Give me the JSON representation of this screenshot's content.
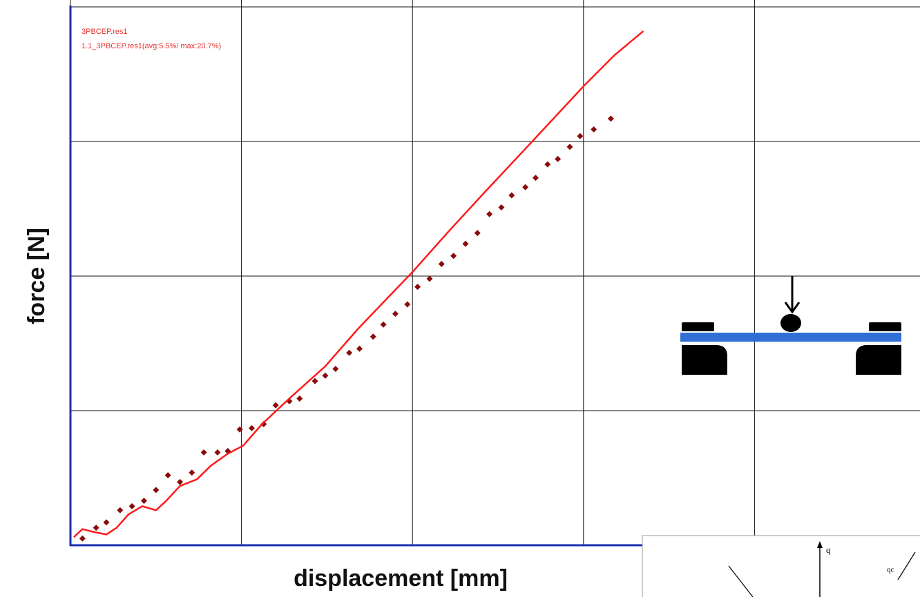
{
  "chart_data": {
    "type": "scatter",
    "x_label": "displacement [mm]",
    "y_label": "force [N]",
    "xlim": [
      0,
      5
    ],
    "ylim": [
      0,
      4
    ],
    "xticks": [
      0,
      1,
      2,
      3,
      4,
      5
    ],
    "yticks": [
      0,
      1,
      2,
      3,
      4
    ],
    "grid": true,
    "legend_position": "upper left",
    "inset_labels": [
      "q",
      "qc"
    ],
    "series": [
      {
        "name": "3PBCEP.res1",
        "color": "#8b0a0a",
        "style": "markers",
        "x": [
          0.07,
          0.15,
          0.21,
          0.29,
          0.36,
          0.43,
          0.5,
          0.57,
          0.64,
          0.71,
          0.78,
          0.86,
          0.92,
          0.99,
          1.06,
          1.13,
          1.2,
          1.28,
          1.34,
          1.43,
          1.49,
          1.55,
          1.63,
          1.69,
          1.77,
          1.83,
          1.9,
          1.97,
          2.03,
          2.1,
          2.17,
          2.24,
          2.31,
          2.38,
          2.45,
          2.52,
          2.58,
          2.66,
          2.72,
          2.79,
          2.85,
          2.92,
          2.98,
          3.06,
          3.16
        ],
        "values": [
          0.05,
          0.13,
          0.17,
          0.26,
          0.29,
          0.33,
          0.41,
          0.52,
          0.47,
          0.54,
          0.69,
          0.69,
          0.7,
          0.86,
          0.87,
          0.9,
          1.04,
          1.07,
          1.09,
          1.22,
          1.26,
          1.31,
          1.43,
          1.46,
          1.55,
          1.64,
          1.72,
          1.79,
          1.92,
          1.98,
          2.09,
          2.15,
          2.24,
          2.32,
          2.46,
          2.51,
          2.6,
          2.66,
          2.73,
          2.83,
          2.87,
          2.96,
          3.04,
          3.09,
          3.17
        ]
      },
      {
        "name": "1.1_3PBCEP.res1(avg:5.5%/ max:20.7%)",
        "color": "#ff1a1a",
        "style": "line",
        "x": [
          0.02,
          0.07,
          0.13,
          0.21,
          0.27,
          0.34,
          0.42,
          0.5,
          0.56,
          0.64,
          0.74,
          0.82,
          0.92,
          1.01,
          1.12,
          1.28,
          1.49,
          1.69,
          2.0,
          2.21,
          2.42,
          2.7,
          3.0,
          3.18,
          3.35
        ],
        "values": [
          0.06,
          0.12,
          0.1,
          0.08,
          0.13,
          0.23,
          0.29,
          0.26,
          0.33,
          0.44,
          0.49,
          0.59,
          0.68,
          0.74,
          0.9,
          1.09,
          1.33,
          1.62,
          2.03,
          2.33,
          2.62,
          3.0,
          3.41,
          3.64,
          3.82
        ]
      }
    ]
  }
}
